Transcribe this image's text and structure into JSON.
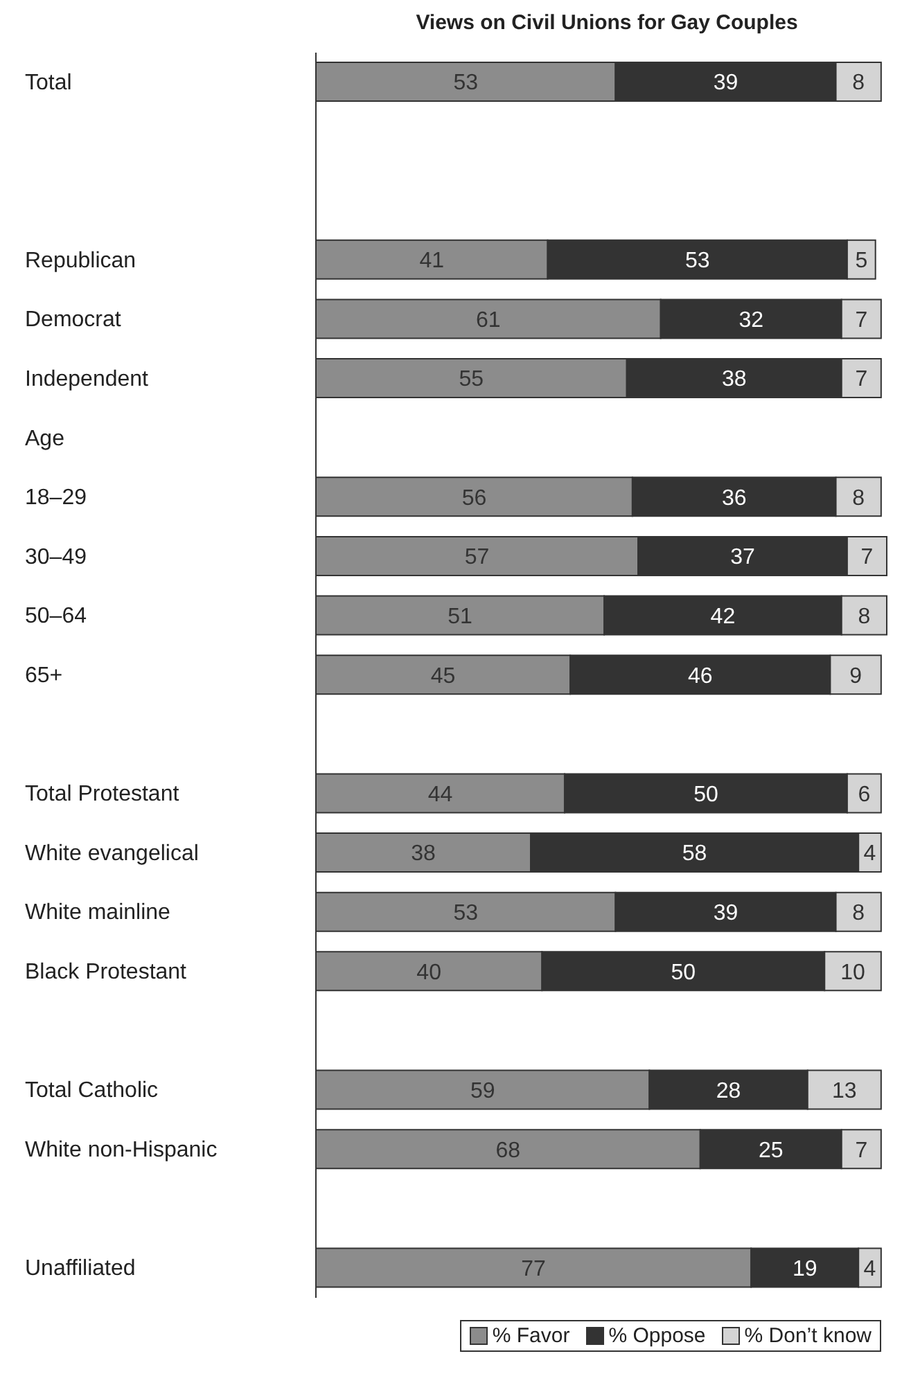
{
  "chart_data": {
    "type": "bar",
    "orientation": "horizontal",
    "stacked": true,
    "title": "Views on Civil Unions for Gay Couples",
    "categories": [
      "Total",
      null,
      null,
      "Republican",
      "Democrat",
      "Independent",
      "Age",
      "18–29",
      "30–49",
      "50–64",
      "65+",
      null,
      "Total Protestant",
      "White evangelical",
      "White mainline",
      "Black Protestant",
      null,
      "Total Catholic",
      "White non-Hispanic",
      null,
      "Unaffiliated"
    ],
    "series": [
      {
        "name": "% Favor",
        "color": "#8c8c8c",
        "values": [
          53,
          null,
          null,
          41,
          61,
          55,
          null,
          56,
          57,
          51,
          45,
          null,
          44,
          38,
          53,
          40,
          null,
          59,
          68,
          null,
          77
        ]
      },
      {
        "name": "% Oppose",
        "color": "#333333",
        "values": [
          39,
          null,
          null,
          53,
          32,
          38,
          null,
          36,
          37,
          42,
          46,
          null,
          50,
          58,
          39,
          50,
          null,
          28,
          25,
          null,
          19
        ]
      },
      {
        "name": "% Don’t know",
        "color": "#d4d4d4",
        "values": [
          8,
          null,
          null,
          5,
          7,
          7,
          null,
          8,
          7,
          8,
          9,
          null,
          6,
          4,
          8,
          10,
          null,
          13,
          7,
          null,
          4
        ]
      }
    ],
    "data_labels": true,
    "legend": "bottom right",
    "grid": false
  }
}
